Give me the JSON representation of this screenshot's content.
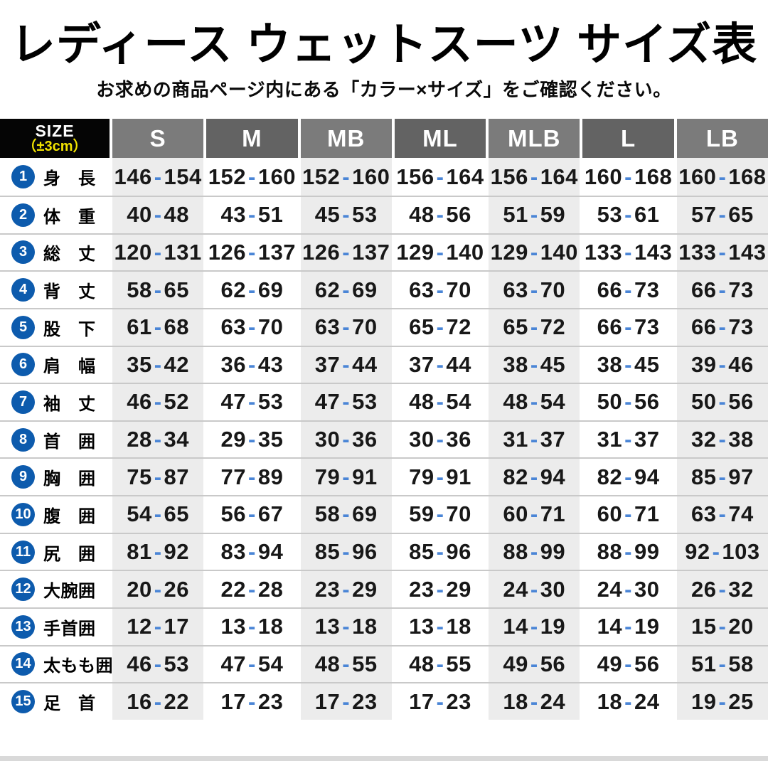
{
  "title": "レディース ウェットスーツ サイズ表",
  "subtitle": "お求めの商品ページ内にある「カラー×サイズ」をご確認ください。",
  "table": {
    "corner": {
      "line1": "SIZE",
      "line2": "（±3cm）"
    },
    "columns": [
      "S",
      "M",
      "MB",
      "ML",
      "MLB",
      "L",
      "LB"
    ],
    "rows": [
      {
        "num": "1",
        "label": "身　長",
        "values": [
          "146-154",
          "152-160",
          "152-160",
          "156-164",
          "156-164",
          "160-168",
          "160-168"
        ]
      },
      {
        "num": "2",
        "label": "体　重",
        "values": [
          "40-48",
          "43-51",
          "45-53",
          "48-56",
          "51-59",
          "53-61",
          "57-65"
        ]
      },
      {
        "num": "3",
        "label": "総　丈",
        "values": [
          "120-131",
          "126-137",
          "126-137",
          "129-140",
          "129-140",
          "133-143",
          "133-143"
        ]
      },
      {
        "num": "4",
        "label": "背　丈",
        "values": [
          "58-65",
          "62-69",
          "62-69",
          "63-70",
          "63-70",
          "66-73",
          "66-73"
        ]
      },
      {
        "num": "5",
        "label": "股　下",
        "values": [
          "61-68",
          "63-70",
          "63-70",
          "65-72",
          "65-72",
          "66-73",
          "66-73"
        ]
      },
      {
        "num": "6",
        "label": "肩　幅",
        "values": [
          "35-42",
          "36-43",
          "37-44",
          "37-44",
          "38-45",
          "38-45",
          "39-46"
        ]
      },
      {
        "num": "7",
        "label": "袖　丈",
        "values": [
          "46-52",
          "47-53",
          "47-53",
          "48-54",
          "48-54",
          "50-56",
          "50-56"
        ]
      },
      {
        "num": "8",
        "label": "首　囲",
        "values": [
          "28-34",
          "29-35",
          "30-36",
          "30-36",
          "31-37",
          "31-37",
          "32-38"
        ]
      },
      {
        "num": "9",
        "label": "胸　囲",
        "values": [
          "75-87",
          "77-89",
          "79-91",
          "79-91",
          "82-94",
          "82-94",
          "85-97"
        ]
      },
      {
        "num": "10",
        "label": "腹　囲",
        "values": [
          "54-65",
          "56-67",
          "58-69",
          "59-70",
          "60-71",
          "60-71",
          "63-74"
        ]
      },
      {
        "num": "11",
        "label": "尻　囲",
        "values": [
          "81-92",
          "83-94",
          "85-96",
          "85-96",
          "88-99",
          "88-99",
          "92-103"
        ]
      },
      {
        "num": "12",
        "label": "大腕囲",
        "values": [
          "20-26",
          "22-28",
          "23-29",
          "23-29",
          "24-30",
          "24-30",
          "26-32"
        ]
      },
      {
        "num": "13",
        "label": "手首囲",
        "values": [
          "12-17",
          "13-18",
          "13-18",
          "13-18",
          "14-19",
          "14-19",
          "15-20"
        ]
      },
      {
        "num": "14",
        "label": "太もも囲",
        "values": [
          "46-53",
          "47-54",
          "48-55",
          "48-55",
          "49-56",
          "49-56",
          "51-58"
        ]
      },
      {
        "num": "15",
        "label": "足　首",
        "values": [
          "16-22",
          "17-23",
          "17-23",
          "17-23",
          "18-24",
          "18-24",
          "19-25"
        ]
      }
    ]
  },
  "colors": {
    "accent_blue": "#0d5bad",
    "dash_blue": "#4a85d6",
    "corner_yellow": "#f2e300",
    "header_gray_light": "#7b7b7b",
    "header_gray_dark": "#636363",
    "column_gray": "#ececec",
    "row_line_gray": "#c9c9c9"
  }
}
